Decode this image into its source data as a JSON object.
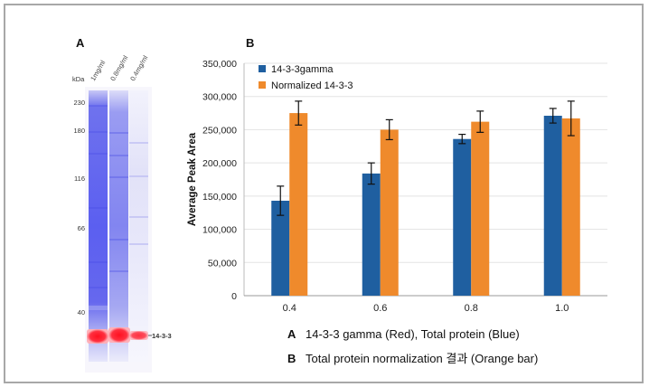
{
  "panel_a": {
    "letter": "A",
    "kda_label": "kDa",
    "lanes": [
      "1mg/ml",
      "0.8mg/ml",
      "0.4mg/ml"
    ],
    "markers": [
      "230",
      "180",
      "116",
      "66",
      "40"
    ],
    "band_label": "14-3-3"
  },
  "panel_b": {
    "letter": "B"
  },
  "chart_data": {
    "type": "bar",
    "categories": [
      "0.4",
      "0.6",
      "0.8",
      "1.0"
    ],
    "series": [
      {
        "name": "14-3-3gamma",
        "color": "#1f5fa0",
        "values": [
          143000,
          184000,
          236000,
          271000
        ],
        "errors": [
          22000,
          16000,
          7000,
          11000
        ]
      },
      {
        "name": "Normalized 14-3-3",
        "color": "#ef8a2c",
        "values": [
          275000,
          250000,
          262000,
          267000
        ],
        "errors": [
          18000,
          15000,
          16000,
          26000
        ]
      }
    ],
    "ylabel": "Average Peak Area",
    "ylim": [
      0,
      350000
    ],
    "yticks": [
      "0",
      "50,000",
      "100,000",
      "150,000",
      "200,000",
      "250,000",
      "300,000",
      "350,000"
    ],
    "grid": true,
    "legend": "top-left"
  },
  "captions": [
    {
      "letter": "A",
      "text": "14-3-3 gamma (Red), Total protein (Blue)"
    },
    {
      "letter": "B",
      "text": "Total protein normalization 결과 (Orange bar)"
    }
  ]
}
